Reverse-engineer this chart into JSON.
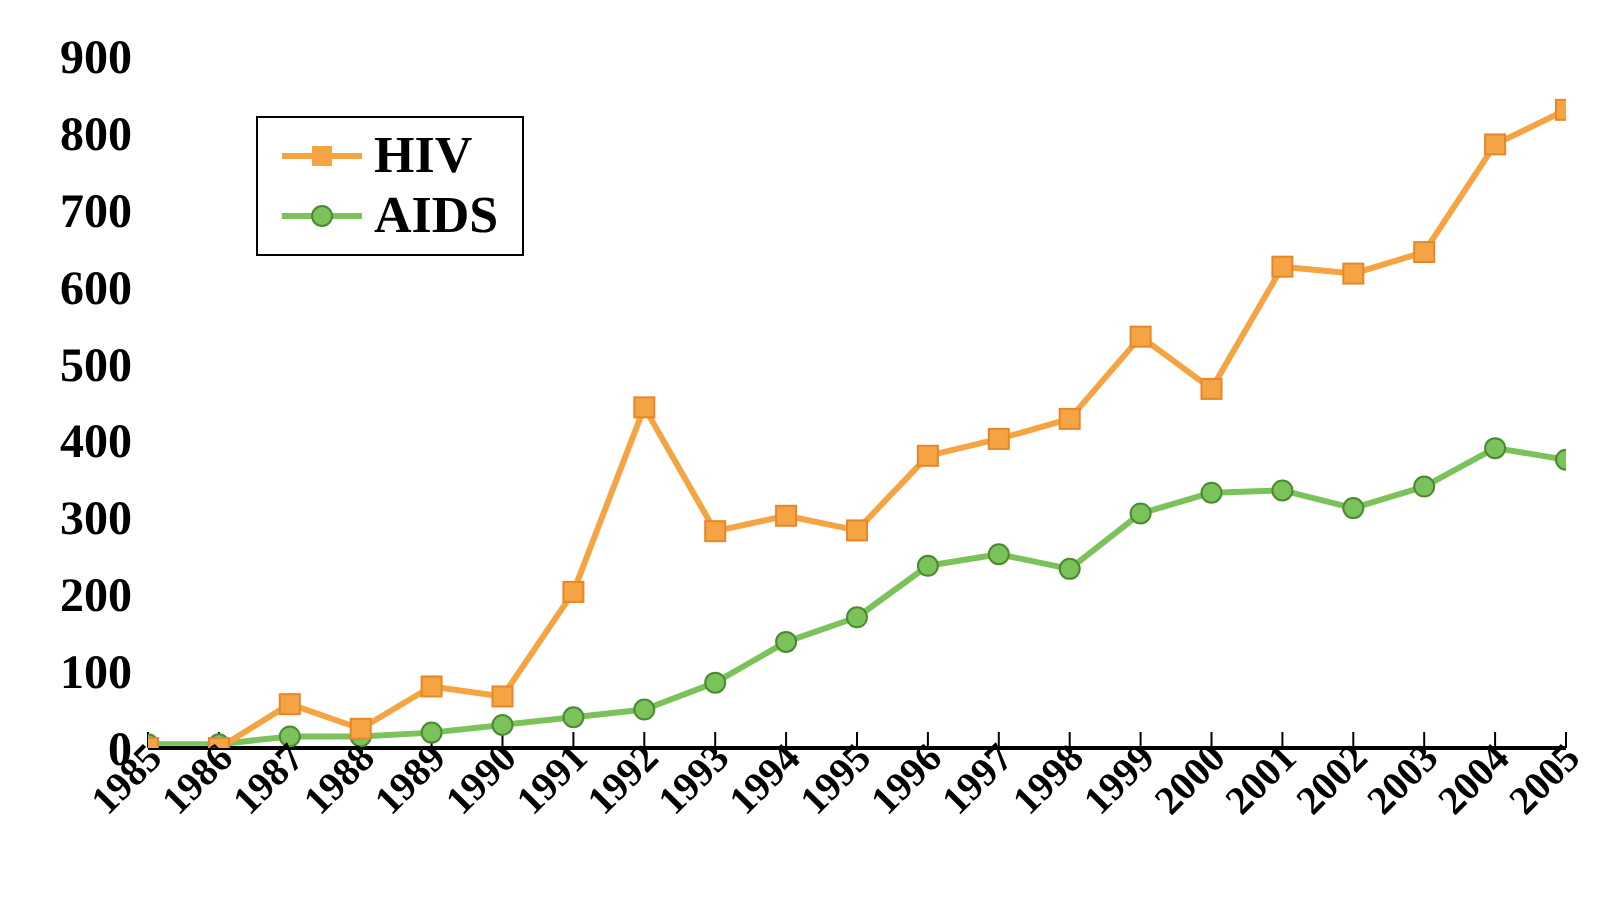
{
  "chart_data": {
    "type": "line",
    "categories": [
      "1985",
      "1986",
      "1987",
      "1988",
      "1989",
      "1990",
      "1991",
      "1992",
      "1993",
      "1994",
      "1995",
      "1996",
      "1997",
      "1998",
      "1999",
      "2000",
      "2001",
      "2002",
      "2003",
      "2004",
      "2005"
    ],
    "series": [
      {
        "name": "HIV",
        "color": "#f5a443",
        "marker": "square",
        "values": [
          0,
          0,
          57,
          25,
          80,
          67,
          203,
          443,
          282,
          302,
          283,
          380,
          402,
          428,
          535,
          467,
          626,
          617,
          645,
          785,
          830
        ]
      },
      {
        "name": "AIDS",
        "color": "#7cc25a",
        "marker": "circle",
        "values": [
          5,
          5,
          15,
          15,
          20,
          30,
          40,
          50,
          85,
          138,
          170,
          237,
          252,
          233,
          305,
          332,
          335,
          312,
          340,
          390,
          375
        ]
      }
    ],
    "ylim": [
      0,
      900
    ],
    "yticks": [
      0,
      100,
      200,
      300,
      400,
      500,
      600,
      700,
      800,
      900
    ],
    "grid": false,
    "legend": "top left"
  }
}
